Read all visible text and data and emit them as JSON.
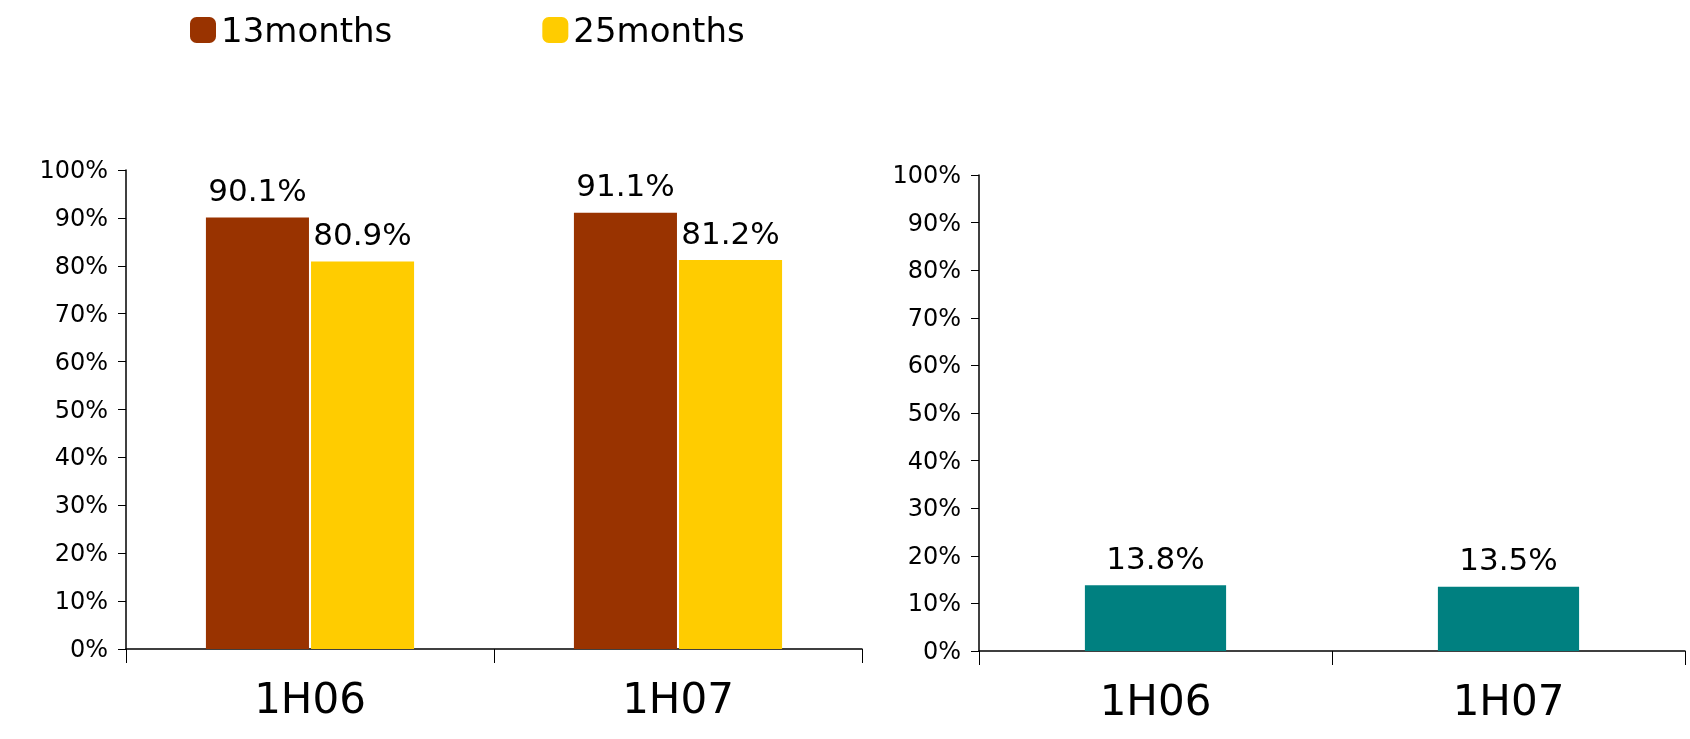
{
  "chart_data": [
    {
      "type": "bar",
      "categories": [
        "1H06",
        "1H07"
      ],
      "legend": "top left",
      "ylim": [
        0,
        100
      ],
      "yticks": [
        {
          "value": 0,
          "label": "0%"
        },
        {
          "value": 10,
          "label": "10%"
        },
        {
          "value": 20,
          "label": "20%"
        },
        {
          "value": 30,
          "label": "30%"
        },
        {
          "value": 40,
          "label": "40%"
        },
        {
          "value": 50,
          "label": "50%"
        },
        {
          "value": 60,
          "label": "60%"
        },
        {
          "value": 70,
          "label": "70%"
        },
        {
          "value": 80,
          "label": "80%"
        },
        {
          "value": 90,
          "label": "90%"
        },
        {
          "value": 100,
          "label": "100%"
        }
      ],
      "series": [
        {
          "name": "13months",
          "color": "#993300",
          "values": [
            90.1,
            91.1
          ],
          "value_labels": [
            "90.1%",
            "91.1%"
          ]
        },
        {
          "name": "25months",
          "color": "#ffcc00",
          "values": [
            80.9,
            81.2
          ],
          "value_labels": [
            "80.9%",
            "81.2%"
          ]
        }
      ]
    },
    {
      "type": "bar",
      "categories": [
        "1H06",
        "1H07"
      ],
      "ylim": [
        0,
        100
      ],
      "yticks": [
        {
          "value": 0,
          "label": "0%"
        },
        {
          "value": 10,
          "label": "10%"
        },
        {
          "value": 20,
          "label": "20%"
        },
        {
          "value": 30,
          "label": "30%"
        },
        {
          "value": 40,
          "label": "40%"
        },
        {
          "value": 50,
          "label": "50%"
        },
        {
          "value": 60,
          "label": "60%"
        },
        {
          "value": 70,
          "label": "70%"
        },
        {
          "value": 80,
          "label": "80%"
        },
        {
          "value": 90,
          "label": "90%"
        },
        {
          "value": 100,
          "label": "100%"
        }
      ],
      "series": [
        {
          "color": "#008080",
          "values": [
            13.8,
            13.5
          ],
          "value_labels": [
            "13.8%",
            "13.5%"
          ]
        }
      ]
    }
  ]
}
